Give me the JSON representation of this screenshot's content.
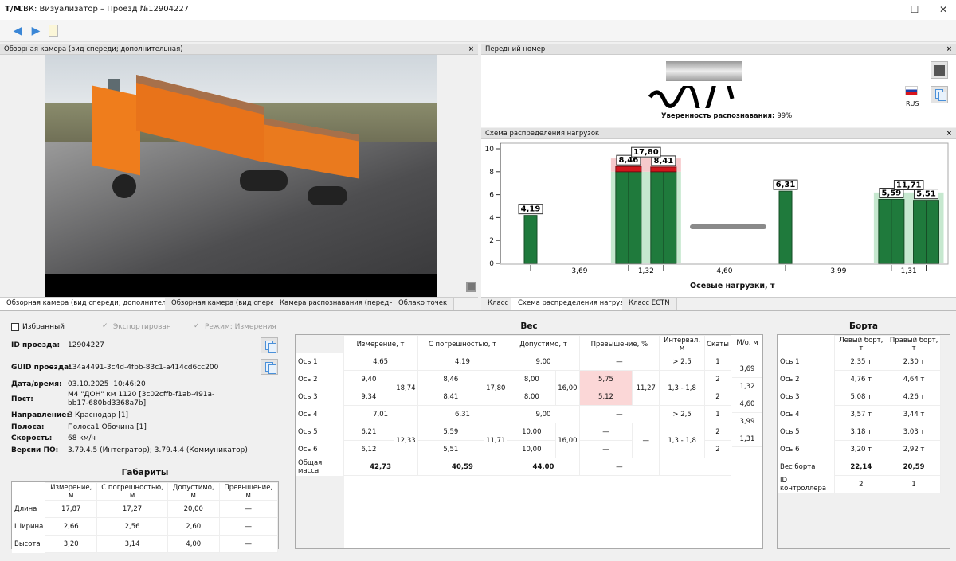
{
  "window": {
    "logo": "T/M",
    "title": "СВК: Визуализатор – Проезд №12904227",
    "minimize": "—",
    "maximize": "☐",
    "close": "✕"
  },
  "toolbar": {
    "icons": [
      "arrow-left-icon",
      "arrow-right-icon",
      "report-icon"
    ]
  },
  "camera_panel": {
    "title": "Обзорная камера (вид спереди; дополнительная)",
    "close": "×",
    "tabs": [
      "Обзорная камера (вид спереди; дополнительная)",
      "Обзорная камера (вид спереди)",
      "Камера распознавания (передняя)",
      "Облако точек"
    ],
    "selected_tab": 0
  },
  "plate_panel": {
    "title": "Передний номер",
    "close": "×",
    "confidence_label": "Уверенность распознавания:",
    "confidence_value": "99%",
    "country": "RUS"
  },
  "load_panel": {
    "title": "Схема распределения нагрузок",
    "close": "×",
    "tabs": [
      "Класс",
      "Схема распределения нагрузок",
      "Класс ECTN"
    ],
    "selected_tab": 1
  },
  "chart_data": {
    "type": "bar",
    "xlabel": "Осевые нагрузки, т",
    "ylim": [
      0,
      10
    ],
    "yticks": [
      "0",
      "2",
      "4",
      "6",
      "8",
      "10"
    ],
    "axles": [
      {
        "value": 4.19,
        "label": "4,19",
        "limit": 9,
        "twin": false
      },
      {
        "value": 8.46,
        "label": "8,46",
        "limit": 8,
        "twin": true
      },
      {
        "value": 8.41,
        "label": "8,41",
        "limit": 8,
        "twin": true
      },
      {
        "value": 6.31,
        "label": "6,31",
        "limit": 9,
        "twin": false
      },
      {
        "value": 5.59,
        "label": "5,59",
        "limit": 10,
        "twin": true
      },
      {
        "value": 5.51,
        "label": "5,51",
        "limit": 10,
        "twin": true
      }
    ],
    "intervals": [
      3.69,
      1.32,
      4.6,
      3.99,
      1.31
    ],
    "interval_labels": [
      "3,69",
      "1,32",
      "4,60",
      "3,99",
      "1,31"
    ],
    "groups": [
      {
        "axles": [
          1,
          2
        ],
        "label": "17,80",
        "exceeded": true
      },
      {
        "axles": [
          4,
          5
        ],
        "label": "11,71",
        "exceeded": false
      }
    ],
    "colors": {
      "bar": "#1f7a3c",
      "excess": "#d0161d",
      "band_ok": "#c6e8cf",
      "band_over": "#f6c9cb",
      "hitch": "#8a8a8a"
    }
  },
  "flags": {
    "favorite": "Избранный",
    "favorite_checked": false,
    "exported": "Экспортирован",
    "exported_checked": true,
    "mode": "Режим: Измерения",
    "mode_checked": true
  },
  "info": {
    "id_label": "ID проезда:",
    "id": "12904227",
    "guid_label": "GUID проезда:",
    "guid": "134a4491-3c4d-4fbb-83c1-a414cd6cc200",
    "datetime_label": "Дата/время:",
    "datetime": "03.10.2025  10:46:20",
    "post_label": "Пост:",
    "post": "М4 \"ДОН\" км 1120 [3c02cffb-f1ab-491a-bb17-680bd3368a7b]",
    "direction_label": "Направление:",
    "direction": "В Краснодар [1]",
    "lane_label": "Полоса:",
    "lane": "Полоса1 Обочина [1]",
    "speed_label": "Скорость:",
    "speed": "68 км/ч",
    "version_label": "Версии ПО:",
    "version": "3.79.4.5 (Интегратор); 3.79.4.4 (Коммуникатор)"
  },
  "dims": {
    "title": "Габариты",
    "headers": [
      "Измерение, м",
      "С погрешностью, м",
      "Допустимо, м",
      "Превышение, м"
    ],
    "rows": [
      {
        "name": "Длина",
        "v": [
          "17,87",
          "17,27",
          "20,00",
          "—"
        ]
      },
      {
        "name": "Ширина",
        "v": [
          "2,66",
          "2,56",
          "2,60",
          "—"
        ]
      },
      {
        "name": "Высота",
        "v": [
          "3,20",
          "3,14",
          "4,00",
          "—"
        ]
      }
    ]
  },
  "weight": {
    "title": "Вес",
    "headers": [
      "Измерение, т",
      "С погрешностью, т",
      "Допустимо, т",
      "Превышение, %",
      "Интервал, м",
      "Скаты",
      "М/о, м"
    ],
    "rows": [
      {
        "name": "Ось 1",
        "meas": "4,65",
        "err": "4,19",
        "allow": "9,00",
        "exceed": "—",
        "interval": "> 2,5",
        "skaty": "1"
      },
      {
        "name": "Ось 2",
        "meas": "9,40",
        "meas_g": "18,74",
        "err": "8,46",
        "err_g": "17,80",
        "allow": "8,00",
        "allow_g": "16,00",
        "exceed": "5,75",
        "exceed_g": "11,27",
        "interval": "1,3 - 1,8",
        "skaty": "2"
      },
      {
        "name": "Ось 3",
        "meas": "9,34",
        "err": "8,41",
        "allow": "8,00",
        "exceed": "5,12",
        "skaty": "2"
      },
      {
        "name": "Ось 4",
        "meas": "7,01",
        "err": "6,31",
        "allow": "9,00",
        "exceed": "—",
        "interval": "> 2,5",
        "skaty": "1"
      },
      {
        "name": "Ось 5",
        "meas": "6,21",
        "meas_g": "12,33",
        "err": "5,59",
        "err_g": "11,71",
        "allow": "10,00",
        "allow_g": "16,00",
        "exceed": "—",
        "exceed_g": "—",
        "interval": "1,3 - 1,8",
        "skaty": "2"
      },
      {
        "name": "Ось 6",
        "meas": "6,12",
        "err": "5,51",
        "allow": "10,00",
        "exceed": "—",
        "skaty": "2"
      }
    ],
    "total": {
      "name": "Общая масса",
      "meas": "42,73",
      "err": "40,59",
      "allow": "44,00",
      "exceed": "—"
    },
    "mo": [
      "3,69",
      "1,32",
      "4,60",
      "3,99",
      "1,31"
    ]
  },
  "boards": {
    "title": "Борта",
    "headers": [
      "Левый борт, т",
      "Правый борт, т"
    ],
    "rows": [
      {
        "name": "Ось 1",
        "l": "2,35 т",
        "r": "2,30 т"
      },
      {
        "name": "Ось 2",
        "l": "4,76 т",
        "r": "4,64 т"
      },
      {
        "name": "Ось 3",
        "l": "5,08 т",
        "r": "4,26 т"
      },
      {
        "name": "Ось 4",
        "l": "3,57 т",
        "r": "3,44 т"
      },
      {
        "name": "Ось 5",
        "l": "3,18 т",
        "r": "3,03 т"
      },
      {
        "name": "Ось 6",
        "l": "3,20 т",
        "r": "2,92 т"
      }
    ],
    "total": {
      "name": "Вес борта",
      "l": "22,14",
      "r": "20,59"
    },
    "controller": {
      "name": "ID контроллера",
      "l": "2",
      "r": "1"
    }
  }
}
